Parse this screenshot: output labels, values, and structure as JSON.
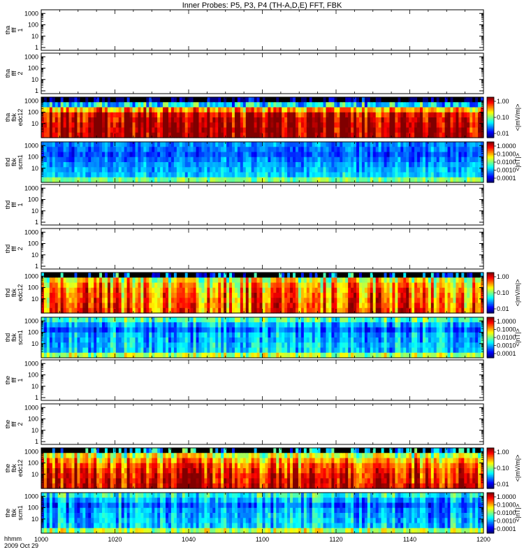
{
  "chart_data": {
    "type": "heatmap",
    "title": "Inner Probes: P5, P3, P4 (TH-A,D,E) FFT, FBK",
    "x_axis": {
      "label_line1": "hhmm",
      "label_line2": "2009 Oct 29",
      "ticks": [
        "1000",
        "1020",
        "1040",
        "1100",
        "1120",
        "1140",
        "1200"
      ],
      "range_minutes": [
        0,
        120
      ]
    },
    "y_scale": "log",
    "panels": [
      {
        "label": [
          "tha",
          "fff",
          "1"
        ],
        "kind": "empty",
        "yticks": [
          "1000",
          "100",
          "10",
          "1"
        ]
      },
      {
        "label": [
          "tha",
          "fff",
          "2"
        ],
        "kind": "empty",
        "yticks": [
          "1000",
          "100",
          "10",
          "1"
        ]
      },
      {
        "label": [
          "tha",
          "fbk",
          "edc12"
        ],
        "kind": "spec",
        "yticks": [
          "1000",
          "100",
          "10"
        ],
        "colorbar": {
          "ticks": [
            "1.00",
            "0.10",
            "0.01"
          ],
          "label": "<|mV/m|>"
        },
        "band_levels": [
          0.0,
          0.35,
          0.72,
          0.9,
          0.94,
          0.96,
          0.97,
          0.97
        ],
        "variability": 0.45,
        "top_black": true
      },
      {
        "label": [
          "thd",
          "fbk",
          "scm1"
        ],
        "kind": "spec",
        "yticks": [
          "1000",
          "100",
          "10"
        ],
        "colorbar": {
          "ticks": [
            "1.0000",
            "0.1000",
            "0.0100",
            "0.0010",
            "0.0001"
          ],
          "label": "<|nT|>"
        },
        "band_levels": [
          0.26,
          0.23,
          0.2,
          0.24,
          0.28,
          0.3,
          0.33,
          0.5
        ],
        "variability": 0.18,
        "top_black": false
      },
      {
        "label": [
          "thd",
          "fff",
          "1"
        ],
        "kind": "empty",
        "yticks": [
          "1000",
          "100",
          "10",
          "1"
        ]
      },
      {
        "label": [
          "thd",
          "fff",
          "2"
        ],
        "kind": "empty",
        "yticks": [
          "1000",
          "100",
          "10",
          "1"
        ]
      },
      {
        "label": [
          "thd",
          "fbk",
          "edc12"
        ],
        "kind": "spec",
        "yticks": [
          "1000",
          "100",
          "10"
        ],
        "colorbar": {
          "ticks": [
            "1.00",
            "0.10",
            "0.01"
          ],
          "label": "<|mV/m|>"
        },
        "band_levels": [
          0.25,
          0.62,
          0.7,
          0.74,
          0.76,
          0.78,
          0.8,
          0.82
        ],
        "variability": 0.5,
        "top_black": true
      },
      {
        "label": [
          "thd",
          "fbk",
          "scm1"
        ],
        "kind": "spec",
        "yticks": [
          "1000",
          "100",
          "10"
        ],
        "colorbar": {
          "ticks": [
            "1.0000",
            "0.1000",
            "0.0100",
            "0.0010",
            "0.0001"
          ],
          "label": "<|nT|>"
        },
        "band_levels": [
          0.45,
          0.3,
          0.22,
          0.3,
          0.3,
          0.32,
          0.33,
          0.55
        ],
        "variability": 0.3,
        "top_black": false
      },
      {
        "label": [
          "the",
          "fff",
          "1"
        ],
        "kind": "empty",
        "yticks": [
          "1000",
          "100",
          "10",
          "1"
        ]
      },
      {
        "label": [
          "the",
          "fff",
          "2"
        ],
        "kind": "empty",
        "yticks": [
          "1000",
          "100",
          "10",
          "1"
        ]
      },
      {
        "label": [
          "the",
          "fbk",
          "edc12"
        ],
        "kind": "spec",
        "yticks": [
          "1000",
          "100",
          "10"
        ],
        "colorbar": {
          "ticks": [
            "1.00",
            "0.10",
            "0.01"
          ],
          "label": "<|mV/m|>"
        },
        "band_levels": [
          0.35,
          0.6,
          0.72,
          0.8,
          0.85,
          0.88,
          0.9,
          0.92
        ],
        "variability": 0.45,
        "top_black": true
      },
      {
        "label": [
          "the",
          "fbk",
          "scm1"
        ],
        "kind": "spec",
        "yticks": [
          "1000",
          "100",
          "10"
        ],
        "colorbar": {
          "ticks": [
            "1.0000",
            "0.1000",
            "0.0100",
            "0.0010",
            "0.0001"
          ],
          "label": "<|nT|>"
        },
        "band_levels": [
          0.4,
          0.3,
          0.22,
          0.28,
          0.3,
          0.32,
          0.33,
          0.55
        ],
        "variability": 0.3,
        "top_black": false
      }
    ]
  }
}
